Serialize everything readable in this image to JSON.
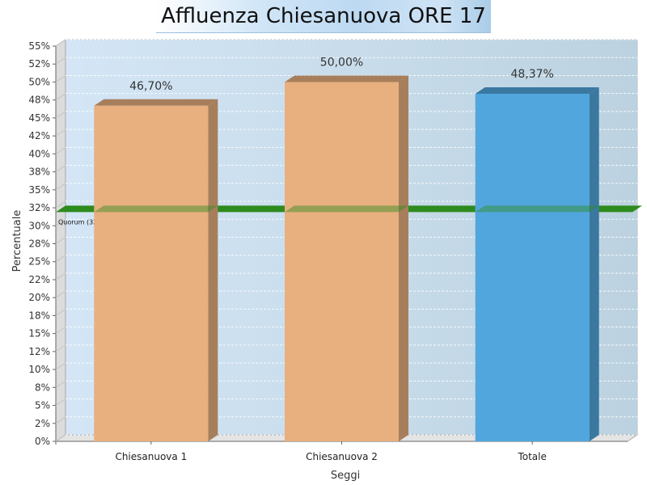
{
  "chart_data": {
    "type": "bar",
    "title": "Affluenza Chiesanuova ORE 17",
    "xlabel": "Seggi",
    "ylabel": "Percentuale",
    "categories": [
      "Chiesanuova 1",
      "Chiesanuova 2",
      "Totale"
    ],
    "values": [
      46.7,
      50.0,
      48.37
    ],
    "data_labels": [
      "46,70%",
      "50,00%",
      "48,37%"
    ],
    "bar_colors": [
      "#e8af7f",
      "#e8af7f",
      "#52a6de"
    ],
    "ylim": [
      0,
      55
    ],
    "y_tick_labels": [
      "0%",
      "2%",
      "5%",
      "8%",
      "10%",
      "12%",
      "15%",
      "18%",
      "20%",
      "22%",
      "25%",
      "28%",
      "30%",
      "32%",
      "35%",
      "38%",
      "40%",
      "42%",
      "45%",
      "48%",
      "50%",
      "52%",
      "55%"
    ],
    "reference_line": {
      "label": "Quorum (32%)",
      "value": 31.9,
      "color": "#2e8b1e"
    },
    "grid": true,
    "three_d": true
  }
}
